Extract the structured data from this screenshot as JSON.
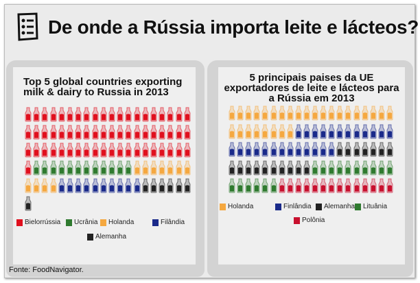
{
  "header": {
    "title": "De onde a Rússia importa leite e lácteos?",
    "icon": "checklist-icon"
  },
  "colors": {
    "Bielorrússia": "#e0101e",
    "Ucrânia": "#2f7a2f",
    "Holanda": "#f5a840",
    "Filândia": "#1a2a8a",
    "Finlândia": "#1a2a8a",
    "Alemanha": "#222222",
    "Lituânia": "#2f7a2f",
    "Polônia": "#c8102e"
  },
  "chart_data": [
    {
      "type": "pictogram",
      "title": "Top 5 global countries exporting milk & dairy to Russia in 2013",
      "unit": "bottles (percent share)",
      "per_row": 20,
      "series": [
        {
          "name": "Bielorrússia",
          "value": 61
        },
        {
          "name": "Ucrânia",
          "value": 12
        },
        {
          "name": "Holanda",
          "value": 11
        },
        {
          "name": "Filândia",
          "value": 10
        },
        {
          "name": "Alemanha",
          "value": 7
        }
      ]
    },
    {
      "type": "pictogram",
      "title": "5 principais paises da UE exportadores de leite e lácteos para a Rússia em 2013",
      "unit": "bottles (percent share)",
      "per_row": 20,
      "series": [
        {
          "name": "Holanda",
          "value": 28
        },
        {
          "name": "Finlândia",
          "value": 25
        },
        {
          "name": "Alemanha",
          "value": 17
        },
        {
          "name": "Lituânia",
          "value": 16
        },
        {
          "name": "Polônia",
          "value": 14
        }
      ]
    }
  ],
  "source": "Fonte: FoodNavigator."
}
